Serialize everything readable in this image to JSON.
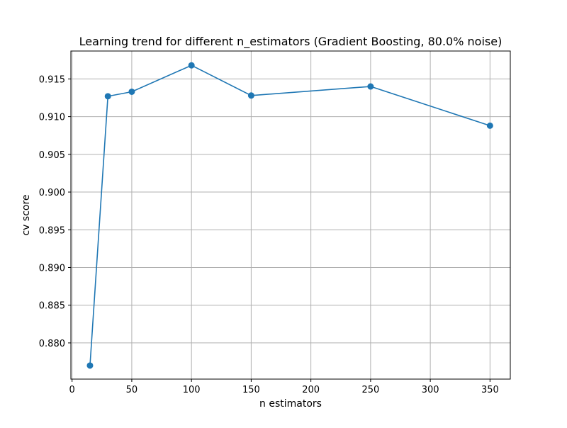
{
  "chart_data": {
    "type": "line",
    "title": "Learning trend for different n_estimators (Gradient Boosting, 80.0% noise)",
    "xlabel": "n estimators",
    "ylabel": "cv score",
    "x": [
      15,
      30,
      50,
      100,
      150,
      250,
      350
    ],
    "series": [
      {
        "values": [
          0.877,
          0.9127,
          0.9133,
          0.9168,
          0.9128,
          0.914,
          0.9088
        ],
        "color": "#1f77b4",
        "marker": "circle"
      }
    ],
    "xlim": [
      -1,
      367
    ],
    "ylim": [
      0.8752,
      0.9187
    ],
    "xticks": [
      0,
      50,
      100,
      150,
      200,
      250,
      300,
      350
    ],
    "yticks": [
      0.88,
      0.885,
      0.89,
      0.895,
      0.9,
      0.905,
      0.91,
      0.915
    ],
    "xtick_labels": [
      "0",
      "50",
      "100",
      "150",
      "200",
      "250",
      "300",
      "350"
    ],
    "ytick_labels": [
      "0.880",
      "0.885",
      "0.890",
      "0.895",
      "0.900",
      "0.905",
      "0.910",
      "0.915"
    ],
    "grid": true,
    "grid_color": "#b0b0b0",
    "axes_color": "#000000"
  }
}
